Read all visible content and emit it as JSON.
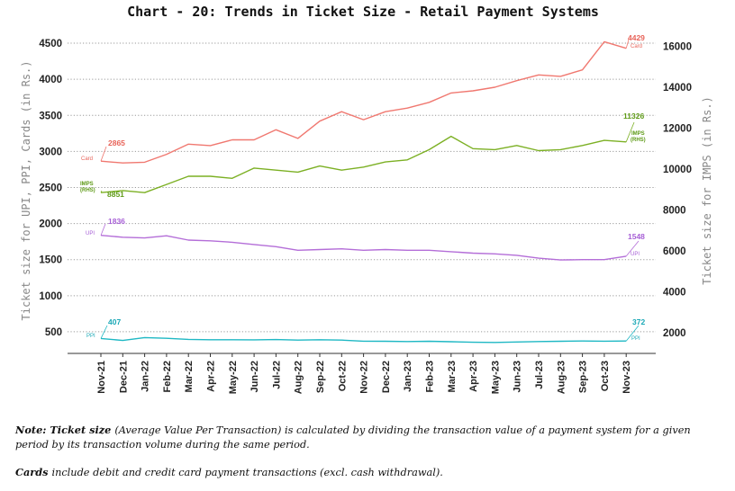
{
  "chart_data": {
    "type": "line",
    "title": "Chart - 20: Trends in Ticket Size - Retail Payment Systems",
    "ylabel_left": "Ticket size for UPI, PPI, Cards (in Rs.)",
    "ylabel_right": "Ticket size for IMPS (in Rs.)",
    "categories": [
      "Nov-21",
      "Dec-21",
      "Jan-22",
      "Feb-22",
      "Mar-22",
      "Apr-22",
      "May-22",
      "Jun-22",
      "Jul-22",
      "Aug-22",
      "Sep-22",
      "Oct-22",
      "Nov-22",
      "Dec-22",
      "Jan-23",
      "Feb-23",
      "Mar-23",
      "Apr-23",
      "May-23",
      "Jun-23",
      "Jul-23",
      "Aug-23",
      "Sep-23",
      "Oct-23",
      "Nov-23"
    ],
    "ylim_left": [
      200,
      4600
    ],
    "ylim_right": [
      1000,
      16500
    ],
    "left_ticks": [
      500,
      1000,
      1500,
      2000,
      2500,
      3000,
      3500,
      4000,
      4500
    ],
    "right_ticks": [
      2000,
      4000,
      6000,
      8000,
      10000,
      12000,
      14000,
      16000
    ],
    "series": [
      {
        "name": "Card",
        "axis": "left",
        "color": "#f07870",
        "label_color": "#e8645a",
        "values": [
          2865,
          2840,
          2850,
          2960,
          3100,
          3080,
          3160,
          3160,
          3300,
          3180,
          3420,
          3550,
          3440,
          3550,
          3600,
          3680,
          3810,
          3840,
          3890,
          3980,
          4060,
          4040,
          4130,
          4520,
          4429
        ],
        "start_value_label": "2865",
        "end_value_label": "4429",
        "tag": "Card"
      },
      {
        "name": "IMPS (RHS)",
        "axis": "right",
        "color": "#7cb024",
        "label_color": "#5e9a16",
        "values": [
          8851,
          8950,
          8850,
          9250,
          9650,
          9650,
          9550,
          10050,
          9950,
          9850,
          10150,
          9950,
          10100,
          10350,
          10450,
          10950,
          11600,
          11000,
          10950,
          11150,
          10900,
          10950,
          11150,
          11400,
          11326
        ],
        "start_value_label": "8851",
        "end_value_label": "11326",
        "tag": "IMPS (RHS)"
      },
      {
        "name": "UPI",
        "axis": "left",
        "color": "#b46ed8",
        "label_color": "#a760d6",
        "values": [
          1836,
          1810,
          1800,
          1830,
          1770,
          1760,
          1740,
          1710,
          1680,
          1630,
          1640,
          1650,
          1630,
          1640,
          1630,
          1630,
          1610,
          1590,
          1580,
          1560,
          1520,
          1495,
          1500,
          1500,
          1548
        ],
        "start_value_label": "1836",
        "end_value_label": "1548",
        "tag": "UPI"
      },
      {
        "name": "PPI",
        "axis": "left",
        "color": "#1fb8c4",
        "label_color": "#1aa8b6",
        "values": [
          407,
          380,
          420,
          410,
          395,
          390,
          390,
          388,
          392,
          385,
          390,
          385,
          370,
          368,
          365,
          368,
          362,
          355,
          352,
          358,
          365,
          368,
          372,
          370,
          372
        ],
        "start_value_label": "407",
        "end_value_label": "372",
        "tag": "PPI"
      }
    ]
  },
  "notes": {
    "note_prefix": "Note: ",
    "note_bold_term": "Ticket size ",
    "note_text": "(Average Value Per Transaction) is calculated by dividing the transaction value of a payment system for a given period by its transaction volume during the same period.",
    "cards_bold_term": "Cards ",
    "cards_text": "include debit and credit card payment transactions (excl. cash withdrawal)."
  }
}
